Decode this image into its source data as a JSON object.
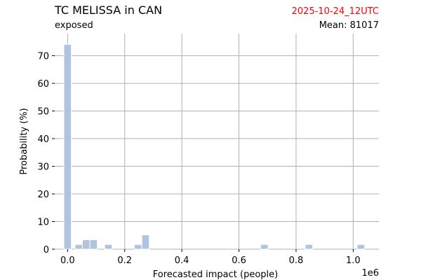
{
  "header": {
    "title": "TC MELISSA in CAN",
    "subtitle": "exposed",
    "run_date": "2025-10-24_12UTC",
    "mean_text": "Mean: 81017"
  },
  "colors": {
    "bar": "#b0c4de",
    "grid": "#b0b0b0",
    "date": "#ff0000"
  },
  "chart_data": {
    "type": "bar",
    "xlabel": "Forecasted impact (people)",
    "ylabel": "Probability (%)",
    "x_offset_label": "1e6",
    "xlim": [
      -0.045,
      1.09
    ],
    "ylim": [
      0,
      78
    ],
    "grid": true,
    "x_ticks": [
      0.0,
      0.2,
      0.4,
      0.6,
      0.8,
      1.0
    ],
    "x_tick_labels": [
      "0.0",
      "0.2",
      "0.4",
      "0.6",
      "0.8",
      "1.0"
    ],
    "y_ticks": [
      0,
      10,
      20,
      30,
      40,
      50,
      60,
      70
    ],
    "y_tick_labels": [
      "0",
      "10",
      "20",
      "30",
      "40",
      "50",
      "60",
      "70"
    ],
    "bin_width": 0.026,
    "bins": [
      {
        "x": 0.0,
        "value": 74.1
      },
      {
        "x": 0.039,
        "value": 1.7
      },
      {
        "x": 0.065,
        "value": 3.4
      },
      {
        "x": 0.091,
        "value": 3.4
      },
      {
        "x": 0.143,
        "value": 1.7
      },
      {
        "x": 0.247,
        "value": 1.7
      },
      {
        "x": 0.273,
        "value": 5.2
      },
      {
        "x": 0.689,
        "value": 1.7
      },
      {
        "x": 0.845,
        "value": 1.7
      },
      {
        "x": 1.027,
        "value": 1.7
      }
    ]
  }
}
